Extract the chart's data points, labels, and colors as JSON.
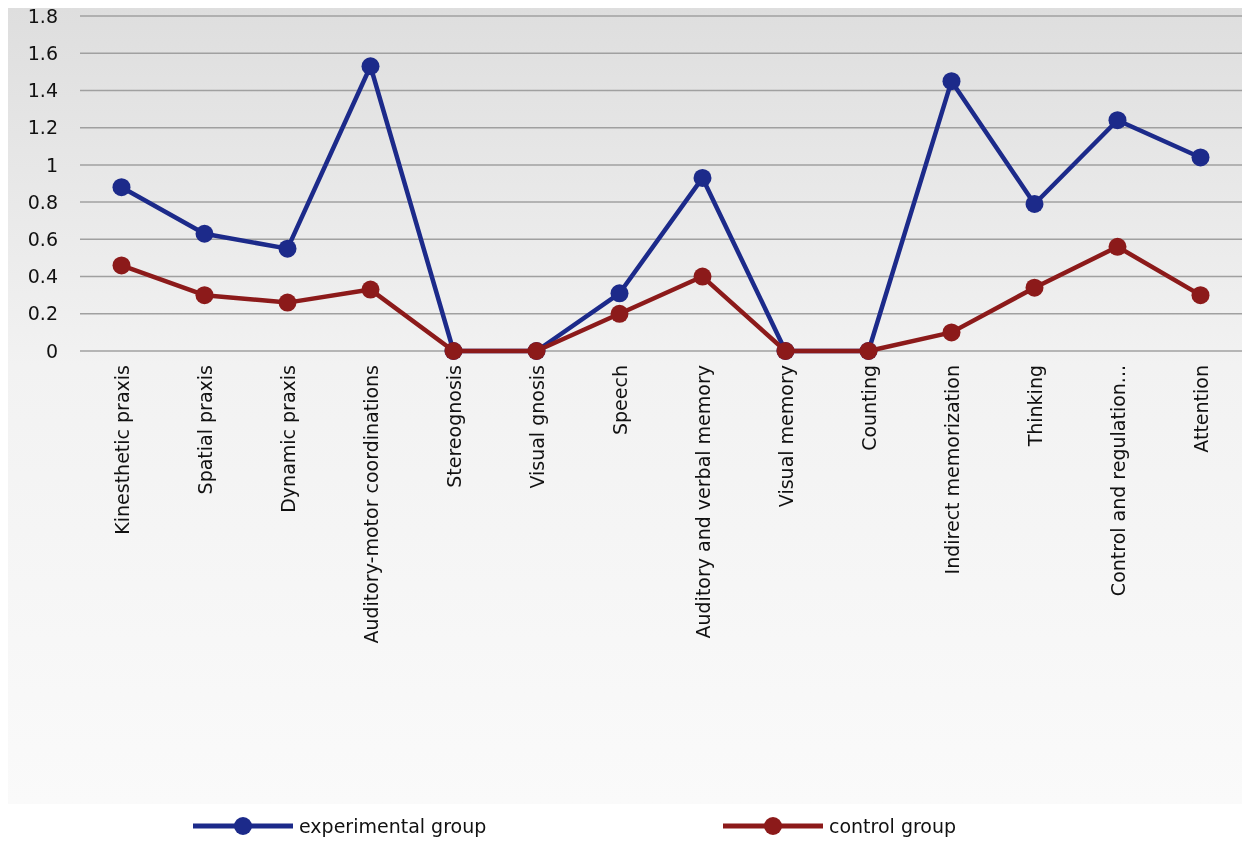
{
  "chart_data": {
    "type": "line",
    "categories": [
      "Kinesthetic praxis",
      "Spatial praxis",
      "Dynamic praxis",
      "Auditory-motor coordinations",
      "Stereognosis",
      "Visual gnosis",
      "Speech",
      "Auditory and verbal memory",
      "Visual memory",
      "Counting",
      "Indirect memorization",
      "Thinking",
      "Control and regulation...",
      "Attention"
    ],
    "series": [
      {
        "name": "experimental group",
        "color": "#1c2a8a",
        "values": [
          0.88,
          0.63,
          0.55,
          1.53,
          0,
          0,
          0.31,
          0.93,
          0,
          0,
          1.45,
          0.79,
          1.24,
          1.04
        ]
      },
      {
        "name": "control group",
        "color": "#8c1a1a",
        "values": [
          0.46,
          0.3,
          0.26,
          0.33,
          0,
          0,
          0.2,
          0.4,
          0,
          0,
          0.1,
          0.34,
          0.56,
          0.3
        ]
      }
    ],
    "ylim": [
      0,
      1.8
    ],
    "yticks": [
      0,
      0.2,
      0.4,
      0.6,
      0.8,
      1,
      1.2,
      1.4,
      1.6,
      1.8
    ],
    "grid": "y",
    "legend": "bottom",
    "marker": "circle",
    "line_style": "solid"
  }
}
